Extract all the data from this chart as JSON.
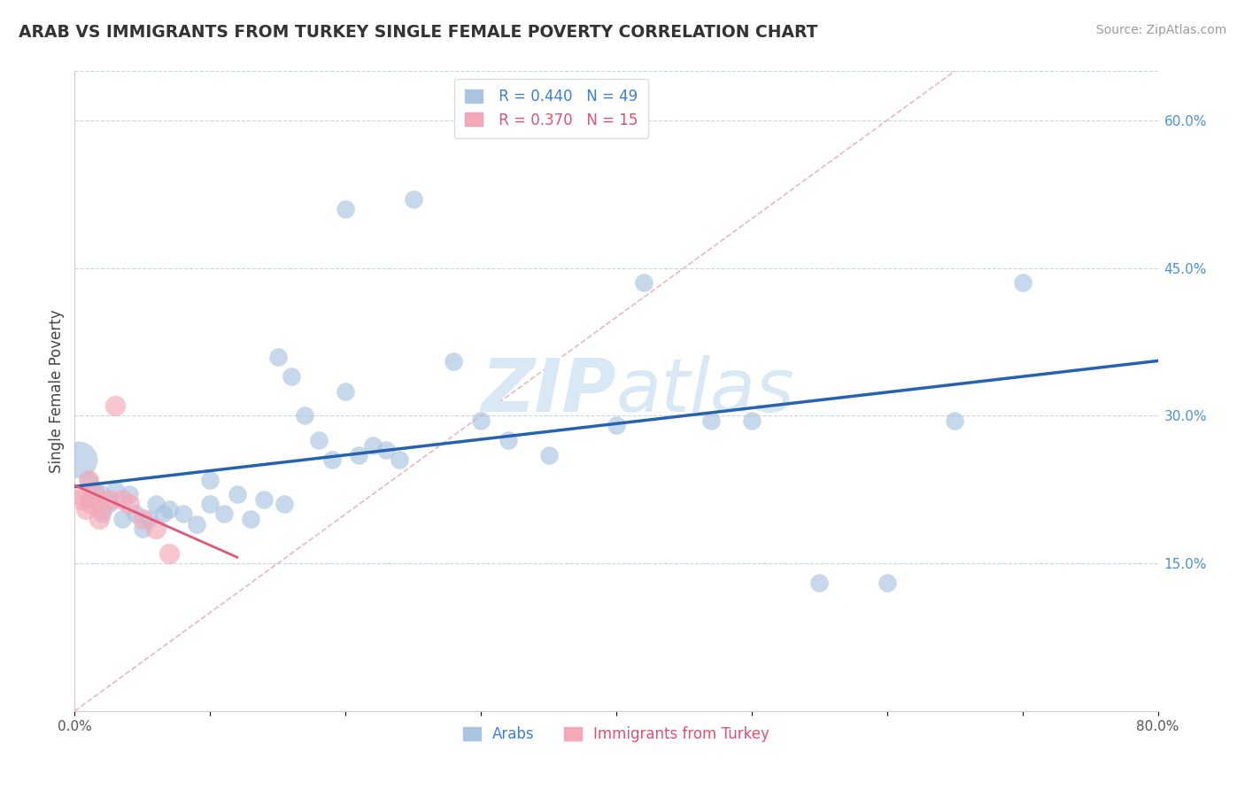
{
  "title": "ARAB VS IMMIGRANTS FROM TURKEY SINGLE FEMALE POVERTY CORRELATION CHART",
  "source": "Source: ZipAtlas.com",
  "ylabel": "Single Female Poverty",
  "xlim": [
    0.0,
    0.8
  ],
  "ylim": [
    0.0,
    0.65
  ],
  "xtick_pos": [
    0.0,
    0.1,
    0.2,
    0.3,
    0.4,
    0.5,
    0.6,
    0.7,
    0.8
  ],
  "xtick_labels": [
    "0.0%",
    "",
    "",
    "",
    "",
    "",
    "",
    "",
    "80.0%"
  ],
  "ytick_positions_right": [
    0.15,
    0.3,
    0.45,
    0.6
  ],
  "ytick_labels_right": [
    "15.0%",
    "30.0%",
    "45.0%",
    "60.0%"
  ],
  "r_arab": 0.44,
  "n_arab": 49,
  "r_turkey": 0.37,
  "n_turkey": 15,
  "arab_color": "#a8c4e0",
  "turkey_color": "#f4a8b8",
  "arab_line_color": "#2563b0",
  "turkey_line_color": "#e05878",
  "diag_color": "#e8b0b8",
  "watermark_color": "#d8e8f4",
  "arab_x": [
    0.003,
    0.01,
    0.01,
    0.015,
    0.02,
    0.02,
    0.025,
    0.03,
    0.035,
    0.04,
    0.045,
    0.05,
    0.055,
    0.06,
    0.065,
    0.07,
    0.08,
    0.09,
    0.1,
    0.1,
    0.11,
    0.12,
    0.13,
    0.14,
    0.15,
    0.155,
    0.16,
    0.17,
    0.18,
    0.19,
    0.2,
    0.21,
    0.22,
    0.23,
    0.24,
    0.25,
    0.28,
    0.3,
    0.32,
    0.35,
    0.4,
    0.42,
    0.5,
    0.55,
    0.6,
    0.65,
    0.7,
    0.2,
    0.47
  ],
  "arab_y": [
    0.255,
    0.235,
    0.215,
    0.225,
    0.22,
    0.2,
    0.21,
    0.225,
    0.195,
    0.22,
    0.2,
    0.185,
    0.195,
    0.21,
    0.2,
    0.205,
    0.2,
    0.19,
    0.235,
    0.21,
    0.2,
    0.22,
    0.195,
    0.215,
    0.36,
    0.21,
    0.34,
    0.3,
    0.275,
    0.255,
    0.325,
    0.26,
    0.27,
    0.265,
    0.255,
    0.52,
    0.355,
    0.295,
    0.275,
    0.26,
    0.29,
    0.435,
    0.295,
    0.13,
    0.13,
    0.295,
    0.435,
    0.51,
    0.295
  ],
  "turkey_x": [
    0.003,
    0.005,
    0.008,
    0.01,
    0.012,
    0.015,
    0.018,
    0.02,
    0.025,
    0.03,
    0.035,
    0.04,
    0.05,
    0.06,
    0.07
  ],
  "turkey_y": [
    0.22,
    0.215,
    0.205,
    0.235,
    0.21,
    0.22,
    0.195,
    0.205,
    0.215,
    0.31,
    0.215,
    0.21,
    0.195,
    0.185,
    0.16
  ],
  "arab_dot_size": 220,
  "arab_large_size": 900,
  "turkey_dot_size": 280
}
